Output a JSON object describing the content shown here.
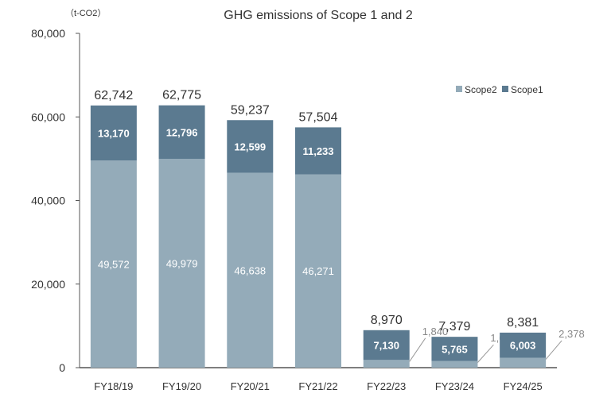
{
  "chart_data": {
    "type": "bar",
    "stacked": true,
    "title": "GHG emissions of Scope 1 and 2",
    "ylabel": "（t-CO2）",
    "ylim": [
      0,
      80000
    ],
    "yticks": [
      "0",
      "20,000",
      "40,000",
      "60,000",
      "80,000"
    ],
    "ytick_values": [
      0,
      20000,
      40000,
      60000,
      80000
    ],
    "grid": false,
    "legend_position": "right",
    "categories": [
      "FY18/19",
      "FY19/20",
      "FY20/21",
      "FY21/22",
      "FY22/23",
      "FY23/24",
      "FY24/25"
    ],
    "series": [
      {
        "name": "Scope2",
        "color": "#94abb9",
        "values": [
          49572,
          49979,
          46638,
          46271,
          1840,
          1614,
          2378
        ],
        "labels": [
          "49,572",
          "49,979",
          "46,638",
          "46,271",
          "1,840",
          "1,614",
          "2,378"
        ]
      },
      {
        "name": "Scope1",
        "color": "#5b7a90",
        "values": [
          13170,
          12796,
          12599,
          11233,
          7130,
          5765,
          6003
        ],
        "labels": [
          "13,170",
          "12,796",
          "12,599",
          "11,233",
          "7,130",
          "5,765",
          "6,003"
        ]
      }
    ],
    "totals": [
      62742,
      62775,
      59237,
      57504,
      8970,
      7379,
      8381
    ],
    "total_labels": [
      "62,742",
      "62,775",
      "59,237",
      "57,504",
      "8,970",
      "7,379",
      "8,381"
    ]
  }
}
